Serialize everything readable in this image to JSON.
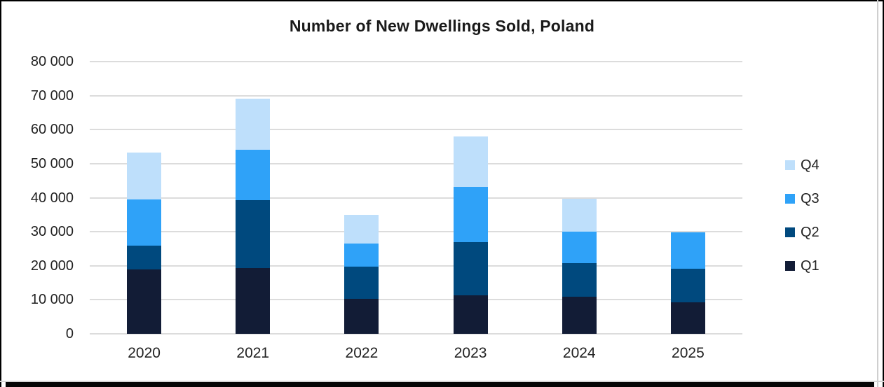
{
  "title": "Number of New Dwellings Sold, Poland",
  "chart_data": {
    "type": "bar",
    "stacked": true,
    "title": "Number of New Dwellings Sold, Poland",
    "categories": [
      "2020",
      "2021",
      "2022",
      "2023",
      "2024",
      "2025"
    ],
    "series": [
      {
        "name": "Q1",
        "color": "#121c36",
        "values": [
          19000,
          19400,
          10200,
          11300,
          10900,
          9200
        ]
      },
      {
        "name": "Q2",
        "color": "#00497e",
        "values": [
          6900,
          19900,
          9600,
          15700,
          9800,
          10000
        ]
      },
      {
        "name": "Q3",
        "color": "#2fa2f8",
        "values": [
          13500,
          14700,
          6700,
          16200,
          9300,
          10600
        ]
      },
      {
        "name": "Q4",
        "color": "#bedffb",
        "values": [
          13800,
          15000,
          8500,
          14700,
          9700,
          0
        ]
      }
    ],
    "totals": [
      53200,
      69000,
      35000,
      57900,
      39700,
      29800
    ],
    "xlabel": "",
    "ylabel": "",
    "ylim": [
      0,
      80000
    ],
    "ytick_step": 10000,
    "ytick_labels": [
      "0",
      "10 000",
      "20 000",
      "30 000",
      "40 000",
      "50 000",
      "60 000",
      "70 000",
      "80 000"
    ],
    "grid": true,
    "gridline_color": "#dcdcdc",
    "legend_position": "right",
    "legend_order": [
      "Q4",
      "Q3",
      "Q2",
      "Q1"
    ]
  }
}
